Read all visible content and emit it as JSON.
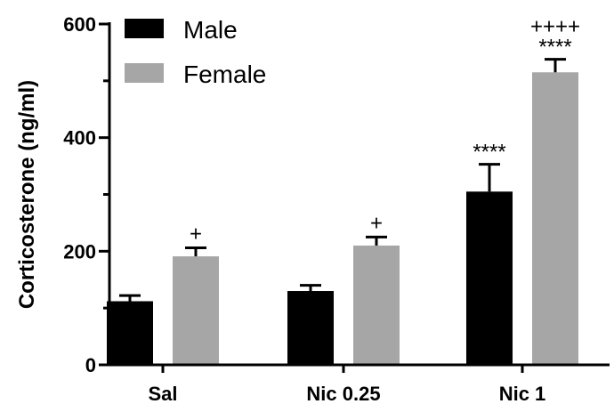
{
  "chart_data": {
    "type": "bar",
    "categories": [
      "Sal",
      "Nic 0.25",
      "Nic 1"
    ],
    "series": [
      {
        "name": "Male",
        "color": "#000000",
        "values": [
          112,
          130,
          305
        ],
        "errors": [
          10,
          10,
          48
        ],
        "annotations": [
          "",
          "",
          "****"
        ]
      },
      {
        "name": "Female",
        "color": "#a6a6a6",
        "values": [
          191,
          210,
          515
        ],
        "errors": [
          15,
          15,
          23
        ],
        "annotations": [
          "+",
          "+",
          "****"
        ],
        "annotations2": [
          "",
          "",
          "++++"
        ]
      }
    ],
    "title": "",
    "xlabel": "",
    "ylabel": "Corticosterone (ng/ml)",
    "ylim": [
      0,
      600
    ],
    "yticks": [
      "0",
      "200",
      "400",
      "600"
    ],
    "legend": "top-left",
    "grid": false
  }
}
